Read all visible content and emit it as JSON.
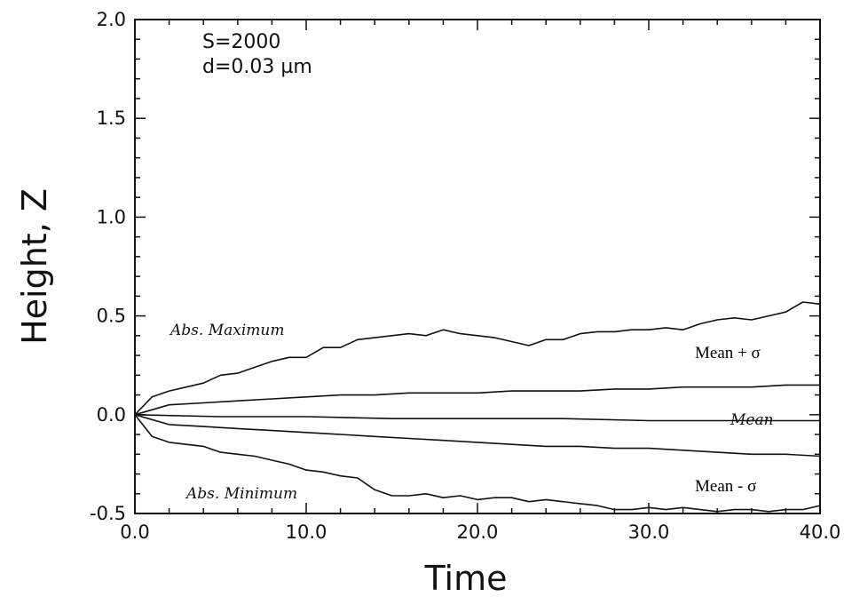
{
  "chart_data": {
    "type": "line",
    "xlabel": "Time",
    "ylabel": "Height, Z",
    "xlim": [
      0,
      40
    ],
    "ylim": [
      -0.5,
      2.0
    ],
    "x_ticks": [
      "0.0",
      "10.0",
      "20.0",
      "30.0",
      "40.0"
    ],
    "y_ticks": [
      "-0.5",
      "0.0",
      "0.5",
      "1.0",
      "1.5",
      "2.0"
    ],
    "parameters": [
      "S=2000",
      "d=0.03 µm"
    ],
    "series": [
      {
        "name": "Abs. Maximum",
        "x": [
          0,
          1,
          2,
          3,
          4,
          5,
          6,
          7,
          8,
          9,
          10,
          11,
          12,
          13,
          14,
          15,
          16,
          17,
          18,
          19,
          20,
          21,
          22,
          23,
          24,
          25,
          26,
          27,
          28,
          29,
          30,
          31,
          32,
          33,
          34,
          35,
          36,
          37,
          38,
          39,
          40
        ],
        "values": [
          0.0,
          0.09,
          0.12,
          0.14,
          0.16,
          0.2,
          0.21,
          0.24,
          0.27,
          0.29,
          0.29,
          0.34,
          0.34,
          0.38,
          0.39,
          0.4,
          0.41,
          0.4,
          0.43,
          0.41,
          0.4,
          0.39,
          0.37,
          0.35,
          0.38,
          0.38,
          0.41,
          0.42,
          0.42,
          0.43,
          0.43,
          0.44,
          0.43,
          0.46,
          0.48,
          0.49,
          0.48,
          0.5,
          0.52,
          0.57,
          0.56
        ]
      },
      {
        "name": "Mean + σ",
        "x": [
          0,
          2,
          4,
          6,
          8,
          10,
          12,
          14,
          16,
          18,
          20,
          22,
          24,
          26,
          28,
          30,
          32,
          34,
          36,
          38,
          40
        ],
        "values": [
          0.0,
          0.05,
          0.06,
          0.07,
          0.08,
          0.09,
          0.1,
          0.1,
          0.11,
          0.11,
          0.11,
          0.12,
          0.12,
          0.12,
          0.13,
          0.13,
          0.14,
          0.14,
          0.14,
          0.15,
          0.15
        ]
      },
      {
        "name": "Mean",
        "x": [
          0,
          5,
          10,
          15,
          20,
          25,
          30,
          35,
          40
        ],
        "values": [
          0.0,
          -0.01,
          -0.01,
          -0.02,
          -0.02,
          -0.02,
          -0.03,
          -0.03,
          -0.03
        ]
      },
      {
        "name": "Mean - σ",
        "x": [
          0,
          2,
          4,
          6,
          8,
          10,
          12,
          14,
          16,
          18,
          20,
          22,
          24,
          26,
          28,
          30,
          32,
          34,
          36,
          38,
          40
        ],
        "values": [
          0.0,
          -0.05,
          -0.06,
          -0.07,
          -0.08,
          -0.09,
          -0.1,
          -0.11,
          -0.12,
          -0.13,
          -0.14,
          -0.15,
          -0.16,
          -0.16,
          -0.17,
          -0.17,
          -0.18,
          -0.19,
          -0.2,
          -0.2,
          -0.21
        ]
      },
      {
        "name": "Abs. Minimum",
        "x": [
          0,
          1,
          2,
          3,
          4,
          5,
          6,
          7,
          8,
          9,
          10,
          11,
          12,
          13,
          14,
          15,
          16,
          17,
          18,
          19,
          20,
          21,
          22,
          23,
          24,
          25,
          26,
          27,
          28,
          29,
          30,
          31,
          32,
          33,
          34,
          35,
          36,
          37,
          38,
          39,
          40
        ],
        "values": [
          0.0,
          -0.11,
          -0.14,
          -0.15,
          -0.16,
          -0.19,
          -0.2,
          -0.21,
          -0.23,
          -0.25,
          -0.28,
          -0.29,
          -0.31,
          -0.32,
          -0.38,
          -0.41,
          -0.41,
          -0.4,
          -0.42,
          -0.41,
          -0.43,
          -0.42,
          -0.42,
          -0.44,
          -0.43,
          -0.44,
          -0.45,
          -0.46,
          -0.48,
          -0.48,
          -0.47,
          -0.48,
          -0.47,
          -0.48,
          -0.49,
          -0.48,
          -0.48,
          -0.49,
          -0.48,
          -0.48,
          -0.46
        ]
      }
    ],
    "curve_labels": {
      "abs_max": "Abs. Maximum",
      "mean_plus": "Mean + σ",
      "mean": "Mean",
      "mean_minus": "Mean - σ",
      "abs_min": "Abs. Minimum"
    },
    "grid": false,
    "legend": "none"
  }
}
